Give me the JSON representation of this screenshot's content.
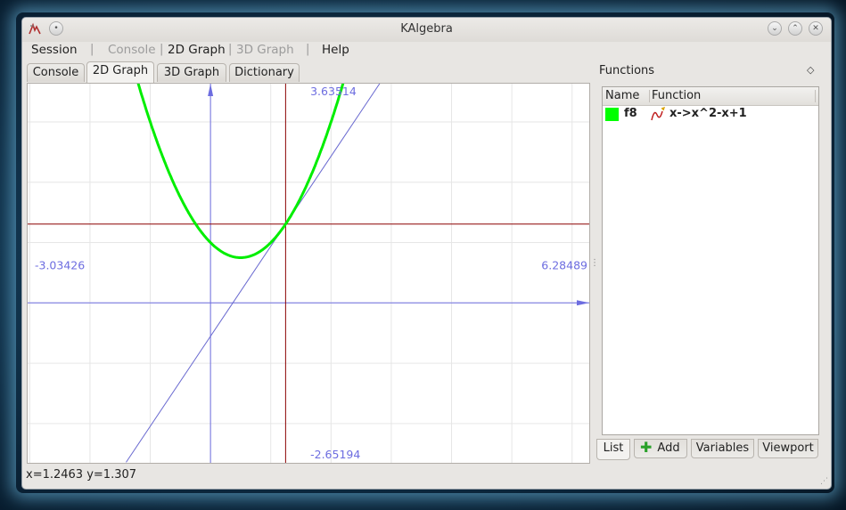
{
  "window": {
    "title": "KAlgebra"
  },
  "menubar": {
    "items": [
      {
        "label": "Session",
        "enabled": true
      },
      {
        "label": "Console",
        "enabled": false
      },
      {
        "label": "2D Graph",
        "enabled": true
      },
      {
        "label": "3D Graph",
        "enabled": false
      },
      {
        "label": "Help",
        "enabled": true
      }
    ]
  },
  "tabs": [
    {
      "label": "Console",
      "active": false
    },
    {
      "label": "2D Graph",
      "active": true
    },
    {
      "label": "3D Graph",
      "active": false
    },
    {
      "label": "Dictionary",
      "active": false
    }
  ],
  "graph": {
    "viewport": {
      "xmin": -3.03426,
      "xmax": 6.28489,
      "ymin": -2.65194,
      "ymax": 3.63514
    },
    "labels": {
      "xmin": "-3.03426",
      "xmax": "6.28489",
      "ymin": "-2.65194",
      "ymax": "3.63514"
    },
    "function": {
      "expression": "x->x^2-x+1",
      "color": "#00ee00"
    },
    "tangent": {
      "x0": 1.2463,
      "color": "#6a6ad0"
    },
    "cursor": {
      "x": 1.2463,
      "y": 1.307
    },
    "colors": {
      "axes": "#6d6de0",
      "crosshair": "#8b0000",
      "grid": "#e6e6e6"
    }
  },
  "functions_panel": {
    "title": "Functions",
    "columns": [
      "Name",
      "Function"
    ],
    "rows": [
      {
        "name": "f8",
        "function": "x->x^2-x+1",
        "color": "#00ff00"
      }
    ],
    "tabs": [
      {
        "label": "List",
        "active": true
      },
      {
        "label": "Add",
        "active": false
      },
      {
        "label": "Variables",
        "active": false
      },
      {
        "label": "Viewport",
        "active": false
      }
    ]
  },
  "status": {
    "text": "x=1.2463 y=1.307"
  }
}
